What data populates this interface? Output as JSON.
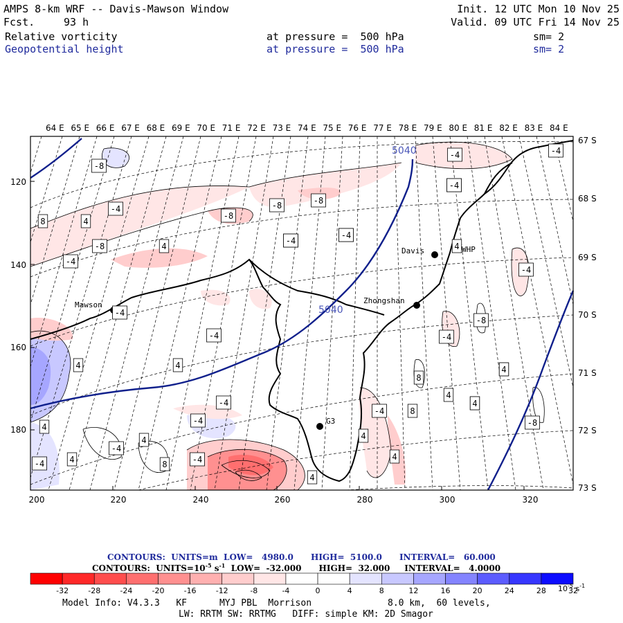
{
  "header": {
    "title": "AMPS 8-km WRF -- Davis-Mawson Window",
    "fcst_label": "Fcst.",
    "fcst_value": "93 h",
    "init": "Init. 12 UTC Mon 10 Nov 25",
    "valid": "Valid. 09 UTC Fri 14 Nov 25",
    "field1": {
      "name": "Relative vorticity",
      "level": "at pressure =  500 hPa",
      "sm": "sm= 2"
    },
    "field2": {
      "name": "Geopotential height",
      "level": "at pressure =  500 hPa",
      "sm": "sm= 2"
    }
  },
  "map": {
    "top_longitudes": [
      "64 E",
      "65 E",
      "66 E",
      "67 E",
      "68 E",
      "69 E",
      "70 E",
      "71 E",
      "72 E",
      "73 E",
      "74 E",
      "75 E",
      "76 E",
      "77 E",
      "78 E",
      "79 E",
      "80 E",
      "81 E",
      "82 E",
      "83 E",
      "84 E"
    ],
    "right_latitudes": [
      "67 S",
      "68 S",
      "69 S",
      "70 S",
      "71 S",
      "72 S",
      "73 S"
    ],
    "left_ticks": [
      "120",
      "140",
      "160",
      "180"
    ],
    "bottom_ticks": [
      "200",
      "220",
      "240",
      "260",
      "280",
      "300",
      "320"
    ],
    "stations": [
      {
        "name": "Mawson"
      },
      {
        "name": "Davis"
      },
      {
        "name": "WHP"
      },
      {
        "name": "Zhongshan"
      },
      {
        "name": "G3"
      }
    ],
    "height_contour_labels": [
      "5040",
      "5040"
    ],
    "vorticity_labels": [
      "-8",
      "-4",
      "4",
      "8",
      "-8",
      "4",
      "-4",
      "-8",
      "-8",
      "-8",
      "-4",
      "-4",
      "-4",
      "-8",
      "-4",
      "-4",
      "-4",
      "4",
      "4",
      "-4",
      "4",
      "4",
      "-4",
      "4",
      "-4",
      "-4",
      "-4",
      "8",
      "4",
      "-4",
      "4",
      "4",
      "8",
      "8",
      "4",
      "8",
      "4",
      "-4",
      "-8",
      "-4",
      "-8",
      "4",
      "-4",
      "-4",
      "-4",
      "4",
      "4"
    ],
    "colors": {
      "height_contour": "#10208c",
      "coast": "#000000",
      "neg": "#e23b3b",
      "pos": "#3c3cd8"
    }
  },
  "legend": {
    "line1": {
      "contours": "CONTOURS:",
      "units": "UNITS=m",
      "low": "LOW=   4980.0",
      "high": "HIGH=  5100.0",
      "interval": "INTERVAL=   60.000"
    },
    "line2": {
      "contours": "CONTOURS:",
      "units": "UNITS=10",
      "units_exp": "-5",
      "units_tail": " s",
      "units_tail_exp": "-1",
      "low": "LOW=  -32.000",
      "high": "HIGH=  32.000",
      "interval": "INTERVAL=   4.0000"
    },
    "colorbar_labels": [
      "-32",
      "-28",
      "-24",
      "-20",
      "-16",
      "-12",
      "-8",
      "-4",
      "0",
      "4",
      "8",
      "12",
      "16",
      "20",
      "24",
      "28",
      "32"
    ],
    "colorbar_unit": "10",
    "colorbar_unit_exp": "-5",
    "colorbar_unit_tail": " s",
    "colorbar_unit_tail_exp": "-1",
    "colorbar_colors": [
      "#ff0000",
      "#ff2828",
      "#ff4d4d",
      "#ff6f6f",
      "#ff9090",
      "#ffb0b0",
      "#ffcdcd",
      "#ffe6e6",
      "#ffffff",
      "#ffffff",
      "#e4e4ff",
      "#c8c8ff",
      "#a6a6ff",
      "#8484ff",
      "#5c5cff",
      "#3636ff",
      "#0c0cff"
    ]
  },
  "footer": {
    "model_info": "Model Info: V4.3.3   KF      MYJ PBL  Morrison",
    "grid": "8.0 km,  60 levels,",
    "line2": "LW: RRTM SW: RRTMG   DIFF: simple KM: 2D Smagor"
  }
}
